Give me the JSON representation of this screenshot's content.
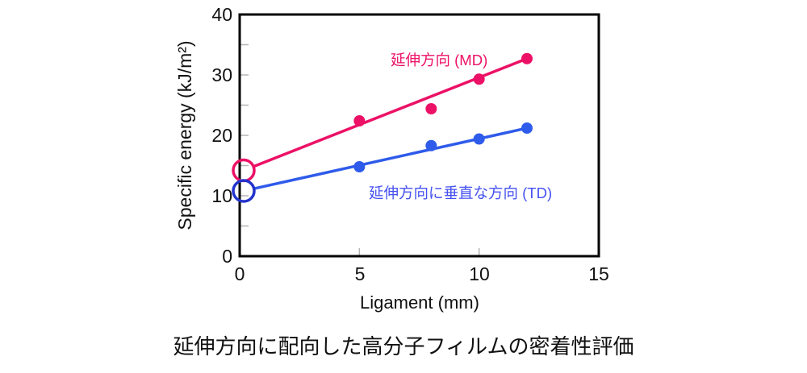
{
  "caption": "延伸方向に配向した高分子フィルムの密着性評価",
  "colors": {
    "md": "#EC1166",
    "td_line": "#2F5BEA",
    "td_text": "#4450F0",
    "td_circle": "#2233CC",
    "axis": "#000000",
    "inner_tick": "#B5B5B5"
  },
  "chart_data": {
    "type": "scatter",
    "title": "",
    "xlabel": "Ligament (mm)",
    "ylabel": "Specific energy (kJ/m²)",
    "xlim": [
      0,
      15
    ],
    "ylim": [
      0,
      40
    ],
    "xticks": [
      0,
      5,
      10,
      15
    ],
    "yticks": [
      0,
      10,
      20,
      30,
      40
    ],
    "grid": false,
    "legend_position": "inline-labels",
    "inner_tick_values": {
      "x": [
        5,
        10
      ],
      "y": [
        5,
        10,
        15,
        20,
        25,
        30,
        35
      ]
    },
    "series": [
      {
        "name": "延伸方向 (MD)",
        "color": "#EC1166",
        "x": [
          5,
          8,
          10,
          12
        ],
        "y": [
          22.4,
          24.4,
          29.3,
          32.7
        ],
        "fit_line": {
          "x": [
            0,
            12
          ],
          "y": [
            14.2,
            32.7
          ]
        },
        "intercept_marker": {
          "x": 0,
          "y": 14.2,
          "style": "open-circle",
          "color": "#EC1166"
        }
      },
      {
        "name": "延伸方向に垂直な方向 (TD)",
        "color": "#2F5BEA",
        "x": [
          5,
          8,
          10,
          12
        ],
        "y": [
          14.8,
          18.3,
          19.4,
          21.2
        ],
        "fit_line": {
          "x": [
            0,
            12
          ],
          "y": [
            10.8,
            21.2
          ]
        },
        "intercept_marker": {
          "x": 0,
          "y": 10.8,
          "style": "open-circle",
          "color": "#2233CC"
        }
      }
    ]
  }
}
